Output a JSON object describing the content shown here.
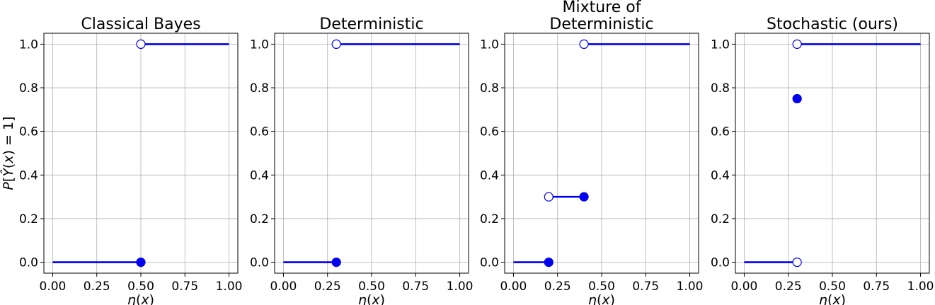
{
  "chart_data": [
    {
      "type": "step",
      "title": [
        "Classical Bayes"
      ],
      "xlabel": "η(x)",
      "ylabel": "P[Ŷ(x) = 1]",
      "xlim": [
        -0.05,
        1.05
      ],
      "ylim": [
        -0.05,
        1.05
      ],
      "xticks": [
        "0.00",
        "0.25",
        "0.50",
        "0.75",
        "1.00"
      ],
      "yticks": [
        "0.0",
        "0.2",
        "0.4",
        "0.6",
        "0.8",
        "1.0"
      ],
      "grid": true,
      "color": "#0000ee",
      "segments": [
        {
          "x": [
            0.0,
            0.5
          ],
          "y": 0.0
        },
        {
          "x": [
            0.5,
            1.0
          ],
          "y": 1.0
        }
      ],
      "points": [
        {
          "x": 0.5,
          "y": 0.0,
          "filled": true
        },
        {
          "x": 0.5,
          "y": 1.0,
          "filled": false
        }
      ]
    },
    {
      "type": "step",
      "title": [
        "Deterministic"
      ],
      "xlabel": "η(x)",
      "ylabel": "",
      "xlim": [
        -0.05,
        1.05
      ],
      "ylim": [
        -0.05,
        1.05
      ],
      "xticks": [
        "0.00",
        "0.25",
        "0.50",
        "0.75",
        "1.00"
      ],
      "yticks": [
        "0.0",
        "0.2",
        "0.4",
        "0.6",
        "0.8",
        "1.0"
      ],
      "grid": true,
      "color": "#0000ee",
      "segments": [
        {
          "x": [
            0.0,
            0.3
          ],
          "y": 0.0
        },
        {
          "x": [
            0.3,
            1.0
          ],
          "y": 1.0
        }
      ],
      "points": [
        {
          "x": 0.3,
          "y": 0.0,
          "filled": true
        },
        {
          "x": 0.3,
          "y": 1.0,
          "filled": false
        }
      ]
    },
    {
      "type": "step",
      "title": [
        "Mixture of",
        "Deterministic"
      ],
      "xlabel": "η(x)",
      "ylabel": "",
      "xlim": [
        -0.05,
        1.05
      ],
      "ylim": [
        -0.05,
        1.05
      ],
      "xticks": [
        "0.00",
        "0.25",
        "0.50",
        "0.75",
        "1.00"
      ],
      "yticks": [
        "0.0",
        "0.2",
        "0.4",
        "0.6",
        "0.8",
        "1.0"
      ],
      "grid": true,
      "color": "#0000ee",
      "segments": [
        {
          "x": [
            0.0,
            0.2
          ],
          "y": 0.0
        },
        {
          "x": [
            0.2,
            0.4
          ],
          "y": 0.3
        },
        {
          "x": [
            0.4,
            1.0
          ],
          "y": 1.0
        }
      ],
      "points": [
        {
          "x": 0.2,
          "y": 0.0,
          "filled": true
        },
        {
          "x": 0.2,
          "y": 0.3,
          "filled": false
        },
        {
          "x": 0.4,
          "y": 0.3,
          "filled": true
        },
        {
          "x": 0.4,
          "y": 1.0,
          "filled": false
        }
      ]
    },
    {
      "type": "step",
      "title": [
        "Stochastic (ours)"
      ],
      "xlabel": "η(x)",
      "ylabel": "",
      "xlim": [
        -0.05,
        1.05
      ],
      "ylim": [
        -0.05,
        1.05
      ],
      "xticks": [
        "0.00",
        "0.25",
        "0.50",
        "0.75",
        "1.00"
      ],
      "yticks": [
        "0.0",
        "0.2",
        "0.4",
        "0.6",
        "0.8",
        "1.0"
      ],
      "grid": true,
      "color": "#0000ee",
      "segments": [
        {
          "x": [
            0.0,
            0.3
          ],
          "y": 0.0
        },
        {
          "x": [
            0.3,
            1.0
          ],
          "y": 1.0
        }
      ],
      "points": [
        {
          "x": 0.3,
          "y": 0.0,
          "filled": false
        },
        {
          "x": 0.3,
          "y": 0.75,
          "filled": true
        },
        {
          "x": 0.3,
          "y": 1.0,
          "filled": false
        }
      ]
    }
  ]
}
